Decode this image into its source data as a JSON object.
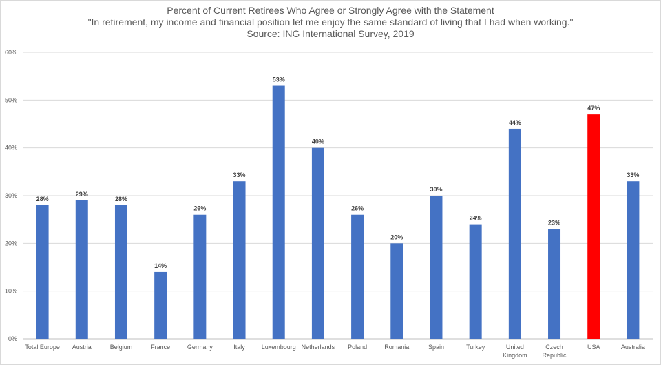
{
  "title": {
    "line1": "Percent of Current Retirees Who Agree or Strongly Agree with the Statement",
    "line2": "\"In retirement, my income and financial position let me enjoy the same standard of living that I had when working.\"",
    "line3": "Source: ING International Survey, 2019"
  },
  "colors": {
    "default_bar": "#4472c4",
    "highlight_bar": "#ff0000",
    "grid": "#d9d9d9",
    "axis_text": "#595959"
  },
  "chart_data": {
    "type": "bar",
    "title": "Percent of Current Retirees Who Agree or Strongly Agree with the Statement",
    "categories": [
      "Total Europe",
      "Austria",
      "Belgium",
      "France",
      "Germany",
      "Italy",
      "Luxembourg",
      "Netherlands",
      "Poland",
      "Romania",
      "Spain",
      "Turkey",
      "United Kingdom",
      "Czech Republic",
      "USA",
      "Australia"
    ],
    "values": [
      28,
      29,
      28,
      14,
      26,
      33,
      53,
      40,
      26,
      20,
      30,
      24,
      44,
      23,
      47,
      33
    ],
    "data_labels": [
      "28%",
      "29%",
      "28%",
      "14%",
      "26%",
      "33%",
      "53%",
      "40%",
      "26%",
      "20%",
      "30%",
      "24%",
      "44%",
      "23%",
      "47%",
      "33%"
    ],
    "highlight_category": "USA",
    "ylim": [
      0,
      60
    ],
    "yticks": [
      "0%",
      "10%",
      "20%",
      "30%",
      "40%",
      "50%",
      "60%"
    ],
    "grid": true,
    "legend": "none"
  }
}
